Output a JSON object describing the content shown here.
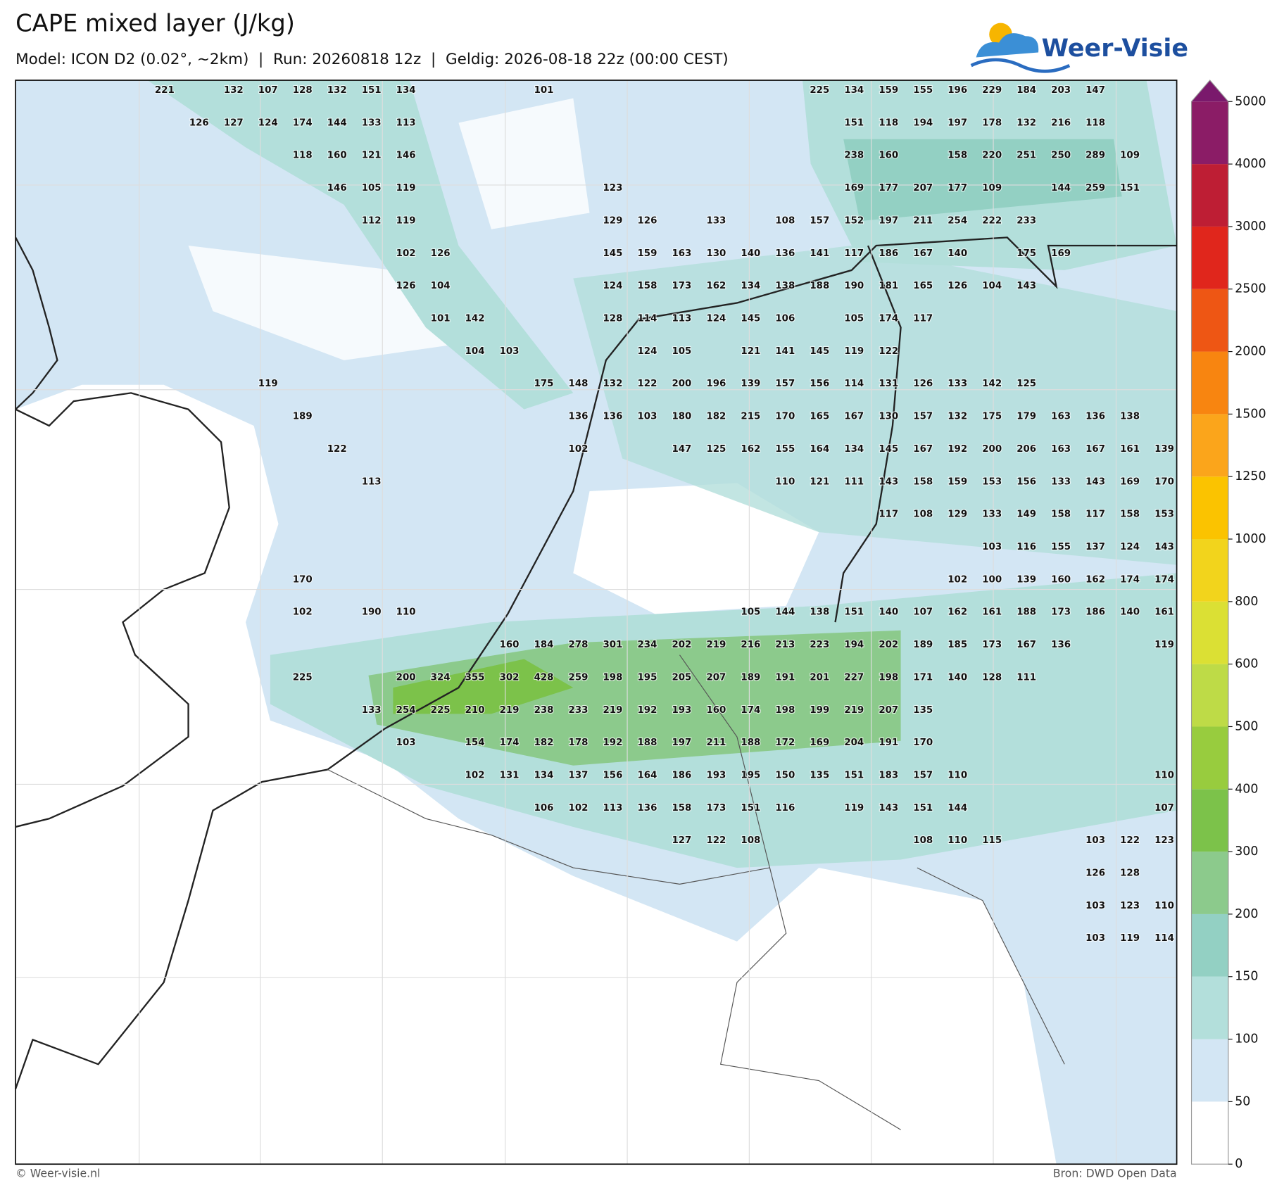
{
  "header": {
    "title": "CAPE mixed layer (J/kg)",
    "subtitle": "Model: ICON D2 (0.02°, ~2km)  |  Run: 20260818 12z  |  Geldig: 2026-08-18 22z (00:00 CEST)",
    "logo": "Weer-Visie"
  },
  "map": {
    "labels": [
      [
        221,
        null,
        132,
        107,
        128,
        132,
        151,
        134,
        null,
        null,
        null,
        101,
        null,
        null,
        null,
        null,
        null,
        null,
        null,
        225,
        134,
        159,
        155,
        196,
        229,
        184,
        203,
        147,
        null,
        null
      ],
      [
        null,
        126,
        127,
        124,
        174,
        144,
        133,
        113,
        null,
        null,
        null,
        null,
        null,
        null,
        null,
        null,
        null,
        null,
        null,
        null,
        151,
        118,
        194,
        197,
        178,
        132,
        216,
        118,
        null,
        null
      ],
      [
        null,
        null,
        null,
        null,
        118,
        160,
        121,
        146,
        null,
        null,
        null,
        null,
        null,
        null,
        null,
        null,
        null,
        null,
        null,
        null,
        238,
        160,
        null,
        158,
        220,
        251,
        250,
        289,
        109,
        null
      ],
      [
        null,
        null,
        null,
        null,
        null,
        146,
        105,
        119,
        null,
        null,
        null,
        null,
        null,
        123,
        null,
        null,
        null,
        null,
        null,
        null,
        169,
        177,
        207,
        177,
        109,
        null,
        144,
        259,
        151,
        null
      ],
      [
        null,
        null,
        null,
        null,
        null,
        null,
        112,
        119,
        null,
        null,
        null,
        null,
        null,
        129,
        126,
        null,
        133,
        null,
        108,
        157,
        152,
        197,
        211,
        254,
        222,
        233,
        null,
        null,
        null,
        null
      ],
      [
        null,
        null,
        null,
        null,
        null,
        null,
        null,
        102,
        126,
        null,
        null,
        null,
        null,
        145,
        159,
        163,
        130,
        140,
        136,
        141,
        117,
        186,
        167,
        140,
        null,
        175,
        169,
        null,
        null,
        null
      ],
      [
        null,
        null,
        null,
        null,
        null,
        null,
        null,
        126,
        104,
        null,
        null,
        null,
        null,
        124,
        158,
        173,
        162,
        134,
        138,
        188,
        190,
        181,
        165,
        126,
        104,
        143,
        null,
        null,
        null,
        null
      ],
      [
        null,
        null,
        null,
        null,
        null,
        null,
        null,
        null,
        101,
        142,
        null,
        null,
        null,
        128,
        114,
        113,
        124,
        145,
        106,
        null,
        105,
        174,
        117,
        null,
        null,
        null,
        null,
        null,
        null,
        null
      ],
      [
        null,
        null,
        null,
        null,
        null,
        null,
        null,
        null,
        null,
        104,
        103,
        null,
        null,
        null,
        124,
        105,
        null,
        121,
        141,
        145,
        119,
        122,
        null,
        null,
        null,
        null,
        null,
        null,
        null,
        null
      ],
      [
        null,
        null,
        null,
        119,
        null,
        null,
        null,
        null,
        null,
        null,
        null,
        175,
        148,
        132,
        122,
        200,
        196,
        139,
        157,
        156,
        114,
        131,
        126,
        133,
        142,
        125,
        null,
        null,
        null,
        null
      ],
      [
        null,
        null,
        null,
        null,
        189,
        null,
        null,
        null,
        null,
        null,
        null,
        null,
        136,
        136,
        103,
        180,
        182,
        215,
        170,
        165,
        167,
        130,
        157,
        132,
        175,
        179,
        163,
        136,
        138,
        null
      ],
      [
        null,
        null,
        null,
        null,
        null,
        122,
        null,
        null,
        null,
        null,
        null,
        null,
        102,
        null,
        null,
        147,
        125,
        162,
        155,
        164,
        134,
        145,
        167,
        192,
        200,
        206,
        163,
        167,
        161,
        139
      ],
      [
        null,
        null,
        null,
        null,
        null,
        null,
        113,
        null,
        null,
        null,
        null,
        null,
        null,
        null,
        null,
        null,
        null,
        null,
        110,
        121,
        111,
        143,
        158,
        159,
        153,
        156,
        133,
        143,
        169,
        170
      ],
      [
        null,
        null,
        null,
        null,
        null,
        null,
        null,
        null,
        null,
        null,
        null,
        null,
        null,
        null,
        null,
        null,
        null,
        null,
        null,
        null,
        null,
        117,
        108,
        129,
        133,
        149,
        158,
        117,
        158,
        153
      ],
      [
        null,
        null,
        null,
        null,
        null,
        null,
        null,
        null,
        null,
        null,
        null,
        null,
        null,
        null,
        null,
        null,
        null,
        null,
        null,
        null,
        null,
        null,
        null,
        null,
        103,
        116,
        155,
        137,
        124,
        143
      ],
      [
        null,
        null,
        null,
        null,
        170,
        null,
        null,
        null,
        null,
        null,
        null,
        null,
        null,
        null,
        null,
        null,
        null,
        null,
        null,
        null,
        null,
        null,
        null,
        102,
        100,
        139,
        160,
        162,
        174,
        174
      ],
      [
        null,
        null,
        null,
        null,
        102,
        null,
        190,
        110,
        null,
        null,
        null,
        null,
        null,
        null,
        null,
        null,
        null,
        105,
        144,
        138,
        151,
        140,
        107,
        162,
        161,
        188,
        173,
        186,
        140,
        161
      ],
      [
        null,
        null,
        null,
        null,
        null,
        null,
        null,
        null,
        null,
        null,
        160,
        184,
        278,
        301,
        234,
        202,
        219,
        216,
        213,
        223,
        194,
        202,
        189,
        185,
        173,
        167,
        136,
        null,
        null,
        119
      ],
      [
        null,
        null,
        null,
        null,
        225,
        null,
        null,
        200,
        324,
        355,
        302,
        428,
        259,
        198,
        195,
        205,
        207,
        189,
        191,
        201,
        227,
        198,
        171,
        140,
        128,
        111,
        null,
        null,
        null,
        null
      ],
      [
        null,
        null,
        null,
        null,
        null,
        null,
        133,
        254,
        225,
        210,
        219,
        238,
        233,
        219,
        192,
        193,
        160,
        174,
        198,
        199,
        219,
        207,
        135,
        null,
        null,
        null,
        null,
        null,
        null,
        null
      ],
      [
        null,
        null,
        null,
        null,
        null,
        null,
        null,
        103,
        null,
        154,
        174,
        182,
        178,
        192,
        188,
        197,
        211,
        188,
        172,
        169,
        204,
        191,
        170,
        null,
        null,
        null,
        null,
        null,
        null,
        null
      ],
      [
        null,
        null,
        null,
        null,
        null,
        null,
        null,
        null,
        null,
        102,
        131,
        134,
        137,
        156,
        164,
        186,
        193,
        195,
        150,
        135,
        151,
        183,
        157,
        110,
        null,
        null,
        null,
        null,
        null,
        110
      ],
      [
        null,
        null,
        null,
        null,
        null,
        null,
        null,
        null,
        null,
        null,
        null,
        106,
        102,
        113,
        136,
        158,
        173,
        151,
        116,
        null,
        119,
        143,
        151,
        144,
        null,
        null,
        null,
        null,
        null,
        107
      ],
      [
        null,
        null,
        null,
        null,
        null,
        null,
        null,
        null,
        null,
        null,
        null,
        null,
        null,
        null,
        null,
        127,
        122,
        108,
        null,
        null,
        null,
        null,
        108,
        110,
        115,
        null,
        null,
        103,
        122,
        123
      ],
      [
        null,
        null,
        null,
        null,
        null,
        null,
        null,
        null,
        null,
        null,
        null,
        null,
        null,
        null,
        null,
        null,
        null,
        null,
        null,
        null,
        null,
        null,
        null,
        null,
        null,
        null,
        null,
        126,
        128,
        null
      ],
      [
        null,
        null,
        null,
        null,
        null,
        null,
        null,
        null,
        null,
        null,
        null,
        null,
        null,
        null,
        null,
        null,
        null,
        null,
        null,
        null,
        null,
        null,
        null,
        null,
        null,
        null,
        null,
        103,
        123,
        110
      ],
      [
        null,
        null,
        null,
        null,
        null,
        null,
        null,
        null,
        null,
        null,
        null,
        null,
        null,
        null,
        null,
        null,
        null,
        null,
        null,
        null,
        null,
        null,
        null,
        null,
        null,
        null,
        null,
        103,
        119,
        114
      ]
    ]
  },
  "colorbar": {
    "ticks": [
      0,
      50,
      100,
      150,
      200,
      300,
      400,
      500,
      600,
      800,
      1000,
      1250,
      1500,
      2000,
      2500,
      3000,
      4000,
      5000
    ],
    "colors": [
      "#ffffff",
      "#d3e6f4",
      "#b3dfdb",
      "#93d0c3",
      "#8cca8c",
      "#7cc24a",
      "#98cc3e",
      "#bedb47",
      "#dbe034",
      "#f2d41c",
      "#fbc300",
      "#fba51b",
      "#f88510",
      "#ee5614",
      "#e0261c",
      "#be1e34",
      "#8b1c66"
    ],
    "extend_color": "#7a196c"
  },
  "footer": {
    "copyright": "© Weer-visie.nl",
    "source": "Bron: DWD Open Data"
  }
}
